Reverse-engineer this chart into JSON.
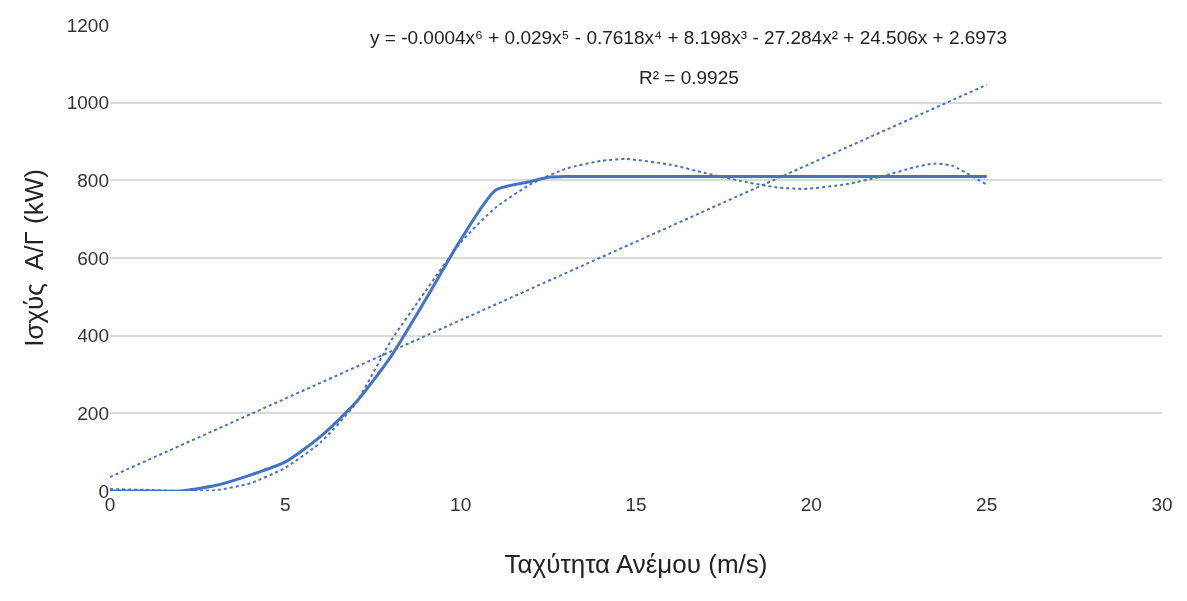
{
  "chart_data": {
    "type": "line",
    "xlabel": "Ταχύτητα Ανέμου (m/s)",
    "ylabel": "Ισχύς  Α/Γ (kW)",
    "annotations": [
      "y = -0.0004x⁶ + 0.029x⁵ - 0.7618x⁴ + 8.198x³ - 27.284x² + 24.506x + 2.6973",
      "R² = 0.9925"
    ],
    "xlim": [
      0,
      30
    ],
    "xticks": [
      0,
      5,
      10,
      15,
      20,
      25,
      30
    ],
    "ylim": [
      0,
      1200
    ],
    "yticks": [
      0,
      200,
      400,
      600,
      800,
      1000,
      1200
    ],
    "grid": "y",
    "legend": false,
    "marker": "none",
    "series": [
      {
        "color": "#4472c4",
        "line_style": "solid",
        "x": [
          0,
          1,
          2,
          3,
          4,
          5,
          6,
          7,
          8,
          9,
          10,
          11,
          12,
          12.5,
          13,
          15,
          20,
          25
        ],
        "values": [
          0,
          0,
          0,
          14,
          41,
          75,
          140,
          227,
          345,
          493,
          647,
          775,
          797,
          808,
          810,
          810,
          810,
          810
        ]
      },
      {
        "color": "#4472c4",
        "line_style": "dotted",
        "x": [
          0,
          1,
          2,
          3,
          4,
          5,
          6,
          7,
          8,
          9,
          10,
          11,
          12,
          13,
          14,
          14.7,
          16,
          17,
          18,
          19,
          19.8,
          21,
          22,
          23,
          23.5,
          24,
          25
        ],
        "values": [
          5,
          3,
          0,
          2,
          20,
          60,
          125,
          225,
          385,
          515,
          640,
          730,
          790,
          830,
          850,
          855,
          840,
          818,
          798,
          782,
          778,
          790,
          810,
          835,
          843,
          838,
          789
        ]
      },
      {
        "color": "#4472c4",
        "line_style": "dotted",
        "x": [
          0,
          25
        ],
        "values": [
          36,
          1046
        ]
      }
    ]
  }
}
